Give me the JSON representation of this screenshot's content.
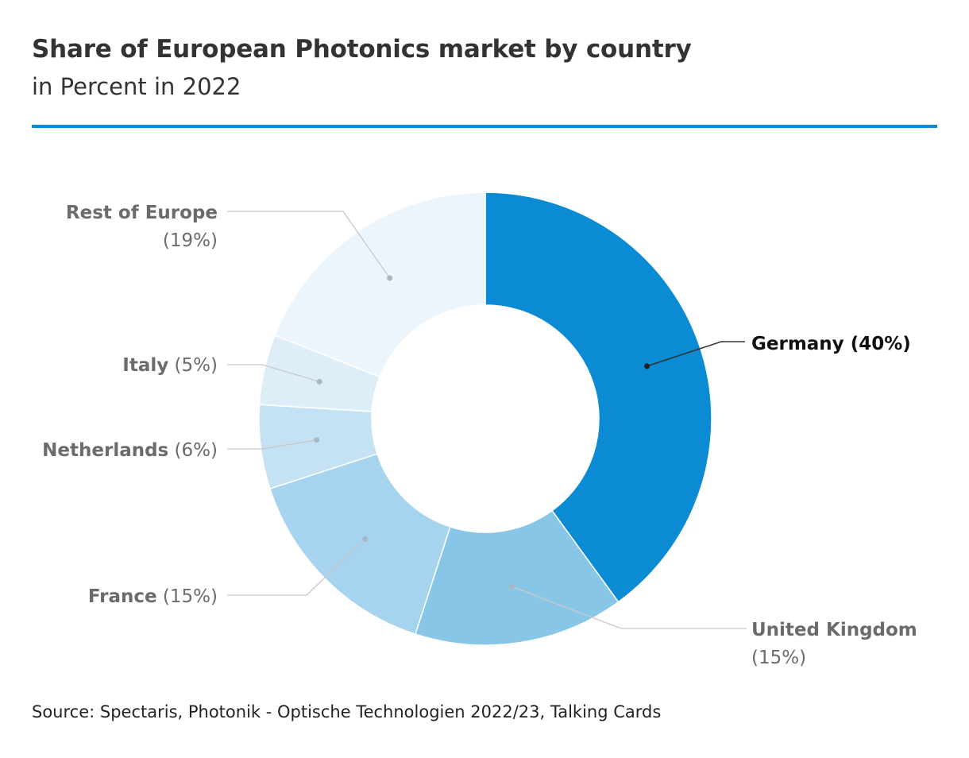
{
  "header": {
    "title": "Share of European Photonics market by country",
    "subtitle": "in Percent in 2022"
  },
  "footer": {
    "source": "Source: Spectaris, Photonik - Optische Technologien 2022/23, Talking Cards"
  },
  "colors": {
    "accent": "#0a8bd3",
    "label_highlight": "#111111",
    "label_muted": "#6b6b6b"
  },
  "chart_data": {
    "type": "pie",
    "donut": true,
    "title": "Share of European Photonics market by country",
    "subtitle": "in Percent in 2022",
    "unit": "%",
    "slices": [
      {
        "label": "Germany",
        "value": 40,
        "display": "(40%)",
        "color": "#0a8bd3",
        "highlight": true
      },
      {
        "label": "United Kingdom",
        "value": 15,
        "display": "(15%)",
        "color": "#88c6e8",
        "highlight": false
      },
      {
        "label": "France",
        "value": 15,
        "display": "(15%)",
        "color": "#a6d4ee",
        "highlight": false
      },
      {
        "label": "Netherlands",
        "value": 6,
        "display": "(6%)",
        "color": "#c4e2f4",
        "highlight": false
      },
      {
        "label": "Italy",
        "value": 5,
        "display": "(5%)",
        "color": "#ddeef9",
        "highlight": false
      },
      {
        "label": "Rest of Europe",
        "value": 19,
        "display": "(19%)",
        "color": "#edf5fc",
        "highlight": false
      }
    ]
  }
}
